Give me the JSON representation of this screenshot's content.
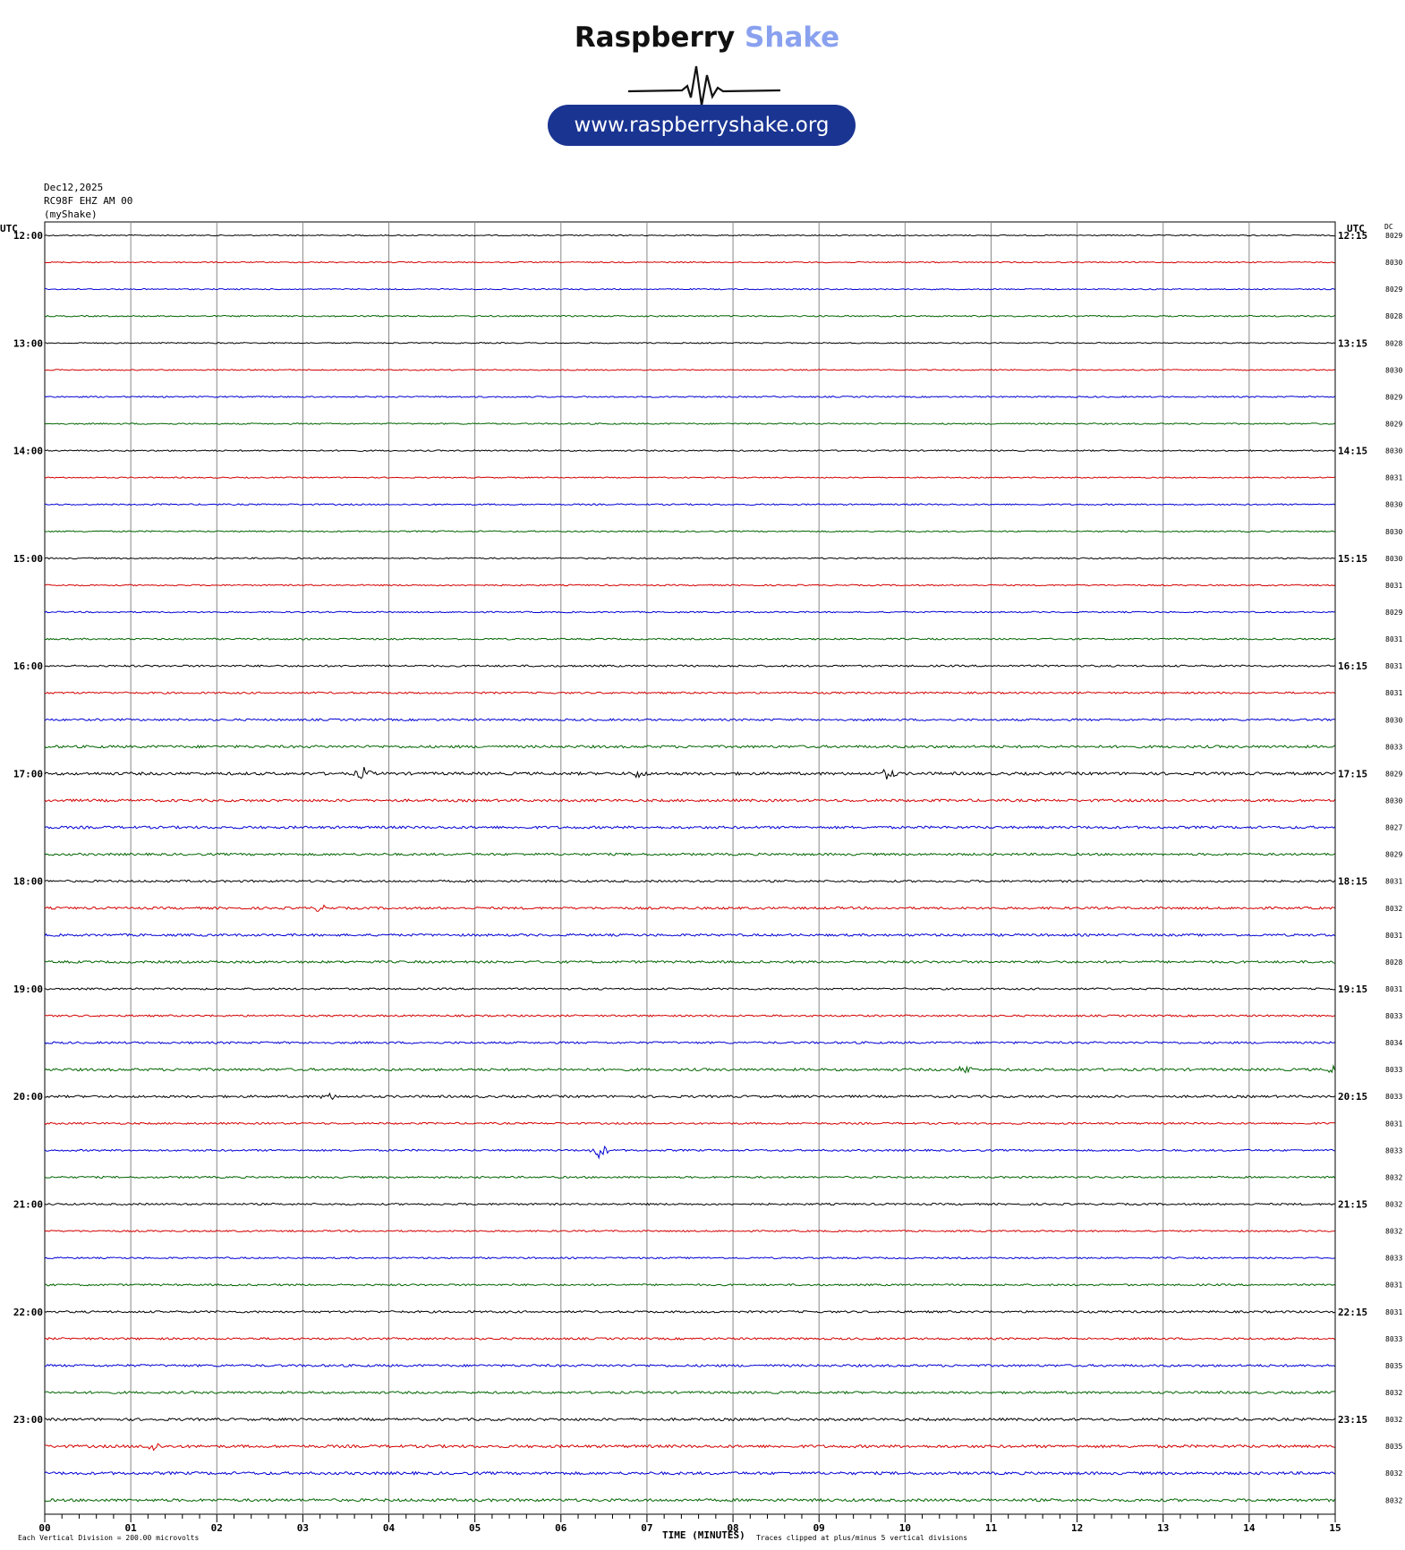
{
  "logo": {
    "brand_dark": "Raspberry",
    "brand_light": "Shake",
    "url": "www.raspberryshake.org"
  },
  "header": {
    "date": "Dec12,2025",
    "station": "RC98F EHZ AM 00",
    "network": "(myShake)"
  },
  "chart_data": {
    "type": "line",
    "chart_kind": "helicorder",
    "title": "",
    "left_axis_label": "UTC",
    "right_axis_label": "UTC",
    "dc_header": "DC",
    "xlabel": "TIME (MINUTES)",
    "x_tick_labels": [
      "00",
      "01",
      "02",
      "03",
      "04",
      "05",
      "06",
      "07",
      "08",
      "09",
      "10",
      "11",
      "12",
      "13",
      "14",
      "15"
    ],
    "xlim": [
      0,
      15
    ],
    "footer_left": "Each Vertical Division =  200.00 microvolts",
    "footer_right": "Traces clipped at plus/minus 5 vertical divisions",
    "row_minutes": 15,
    "left_hour_labels": [
      "12:00",
      "13:00",
      "14:00",
      "15:00",
      "16:00",
      "17:00",
      "18:00",
      "19:00",
      "20:00",
      "21:00",
      "22:00",
      "23:00"
    ],
    "right_hour_labels": [
      "12:15",
      "13:15",
      "14:15",
      "15:15",
      "16:15",
      "17:15",
      "18:15",
      "19:15",
      "20:15",
      "21:15",
      "22:15",
      "23:15"
    ],
    "trace_colors": [
      "#000000",
      "#d40000",
      "#0000d4",
      "#006400"
    ],
    "grid": true,
    "traces": [
      {
        "dc": "8029",
        "noise": 0.5
      },
      {
        "dc": "8030",
        "noise": 0.5
      },
      {
        "dc": "8029",
        "noise": 0.5
      },
      {
        "dc": "8028",
        "noise": 0.6
      },
      {
        "dc": "8028",
        "noise": 0.5
      },
      {
        "dc": "8030",
        "noise": 0.5
      },
      {
        "dc": "8029",
        "noise": 0.6
      },
      {
        "dc": "8029",
        "noise": 0.6
      },
      {
        "dc": "8030",
        "noise": 0.6
      },
      {
        "dc": "8031",
        "noise": 0.5
      },
      {
        "dc": "8030",
        "noise": 0.6
      },
      {
        "dc": "8030",
        "noise": 0.6
      },
      {
        "dc": "8030",
        "noise": 0.6
      },
      {
        "dc": "8031",
        "noise": 0.6
      },
      {
        "dc": "8029",
        "noise": 0.6
      },
      {
        "dc": "8031",
        "noise": 0.7
      },
      {
        "dc": "8031",
        "noise": 0.8
      },
      {
        "dc": "8031",
        "noise": 0.8
      },
      {
        "dc": "8030",
        "noise": 0.9
      },
      {
        "dc": "8033",
        "noise": 1.1
      },
      {
        "dc": "8029",
        "noise": 1.2,
        "events": [
          [
            3.7,
            4
          ],
          [
            6.9,
            2.5
          ],
          [
            9.8,
            3.5
          ]
        ]
      },
      {
        "dc": "8030",
        "noise": 1.1
      },
      {
        "dc": "8027",
        "noise": 1.1
      },
      {
        "dc": "8029",
        "noise": 1.0
      },
      {
        "dc": "8031",
        "noise": 0.9
      },
      {
        "dc": "8032",
        "noise": 1.0,
        "events": [
          [
            3.2,
            2
          ]
        ]
      },
      {
        "dc": "8031",
        "noise": 1.0
      },
      {
        "dc": "8028",
        "noise": 1.0
      },
      {
        "dc": "8031",
        "noise": 0.8
      },
      {
        "dc": "8033",
        "noise": 0.8
      },
      {
        "dc": "8034",
        "noise": 0.9
      },
      {
        "dc": "8033",
        "noise": 1.1,
        "events": [
          [
            10.7,
            2.5
          ],
          [
            15.0,
            3
          ]
        ]
      },
      {
        "dc": "8033",
        "noise": 1.0,
        "events": [
          [
            3.3,
            2
          ]
        ]
      },
      {
        "dc": "8031",
        "noise": 0.8
      },
      {
        "dc": "8033",
        "noise": 0.8,
        "events": [
          [
            6.45,
            5.5
          ]
        ]
      },
      {
        "dc": "8032",
        "noise": 0.8
      },
      {
        "dc": "8032",
        "noise": 0.8
      },
      {
        "dc": "8032",
        "noise": 0.7
      },
      {
        "dc": "8033",
        "noise": 0.7
      },
      {
        "dc": "8031",
        "noise": 0.8
      },
      {
        "dc": "8031",
        "noise": 0.9
      },
      {
        "dc": "8033",
        "noise": 0.9
      },
      {
        "dc": "8035",
        "noise": 1.0
      },
      {
        "dc": "8032",
        "noise": 1.0
      },
      {
        "dc": "8032",
        "noise": 1.1
      },
      {
        "dc": "8035",
        "noise": 1.2,
        "events": [
          [
            1.25,
            3.5
          ]
        ]
      },
      {
        "dc": "8032",
        "noise": 1.2
      },
      {
        "dc": "8032",
        "noise": 1.2
      }
    ]
  }
}
